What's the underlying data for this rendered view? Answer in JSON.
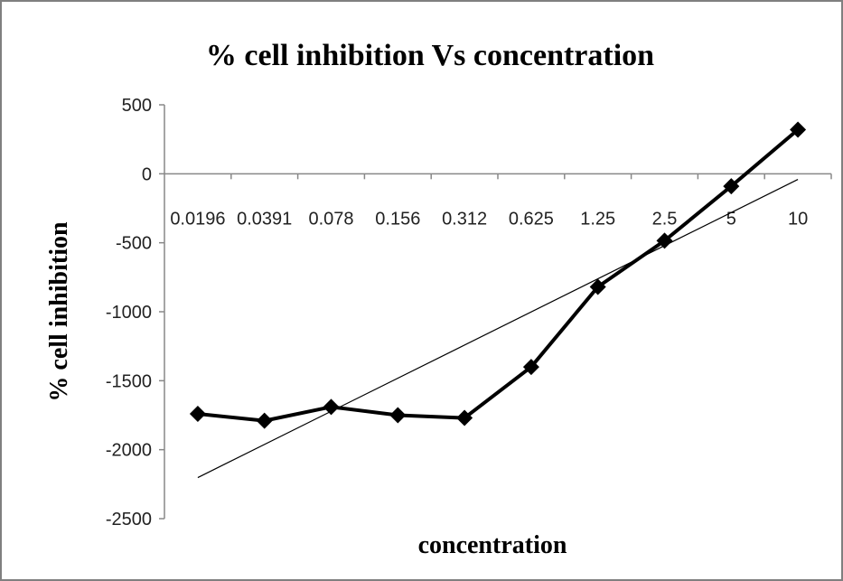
{
  "chart_data": {
    "type": "line",
    "title": "% cell inhibition Vs concentration",
    "x_label": "concentration",
    "y_label": "%  cell inhibition",
    "categories": [
      "0.0196",
      "0.0391",
      "0.078",
      "0.156",
      "0.312",
      "0.625",
      "1.25",
      "2.5",
      "5",
      "10"
    ],
    "series": [
      {
        "name": "% cell inhibition",
        "color": "#000000",
        "values": [
          -1740,
          -1790,
          -1690,
          -1750,
          -1770,
          -1400,
          -820,
          -485,
          -90,
          320
        ]
      }
    ],
    "trendline": "linear",
    "ylim": [
      -2500,
      500
    ],
    "yticks": [
      -2500,
      -2000,
      -1500,
      -1000,
      -500,
      0,
      500
    ],
    "grid": false
  }
}
